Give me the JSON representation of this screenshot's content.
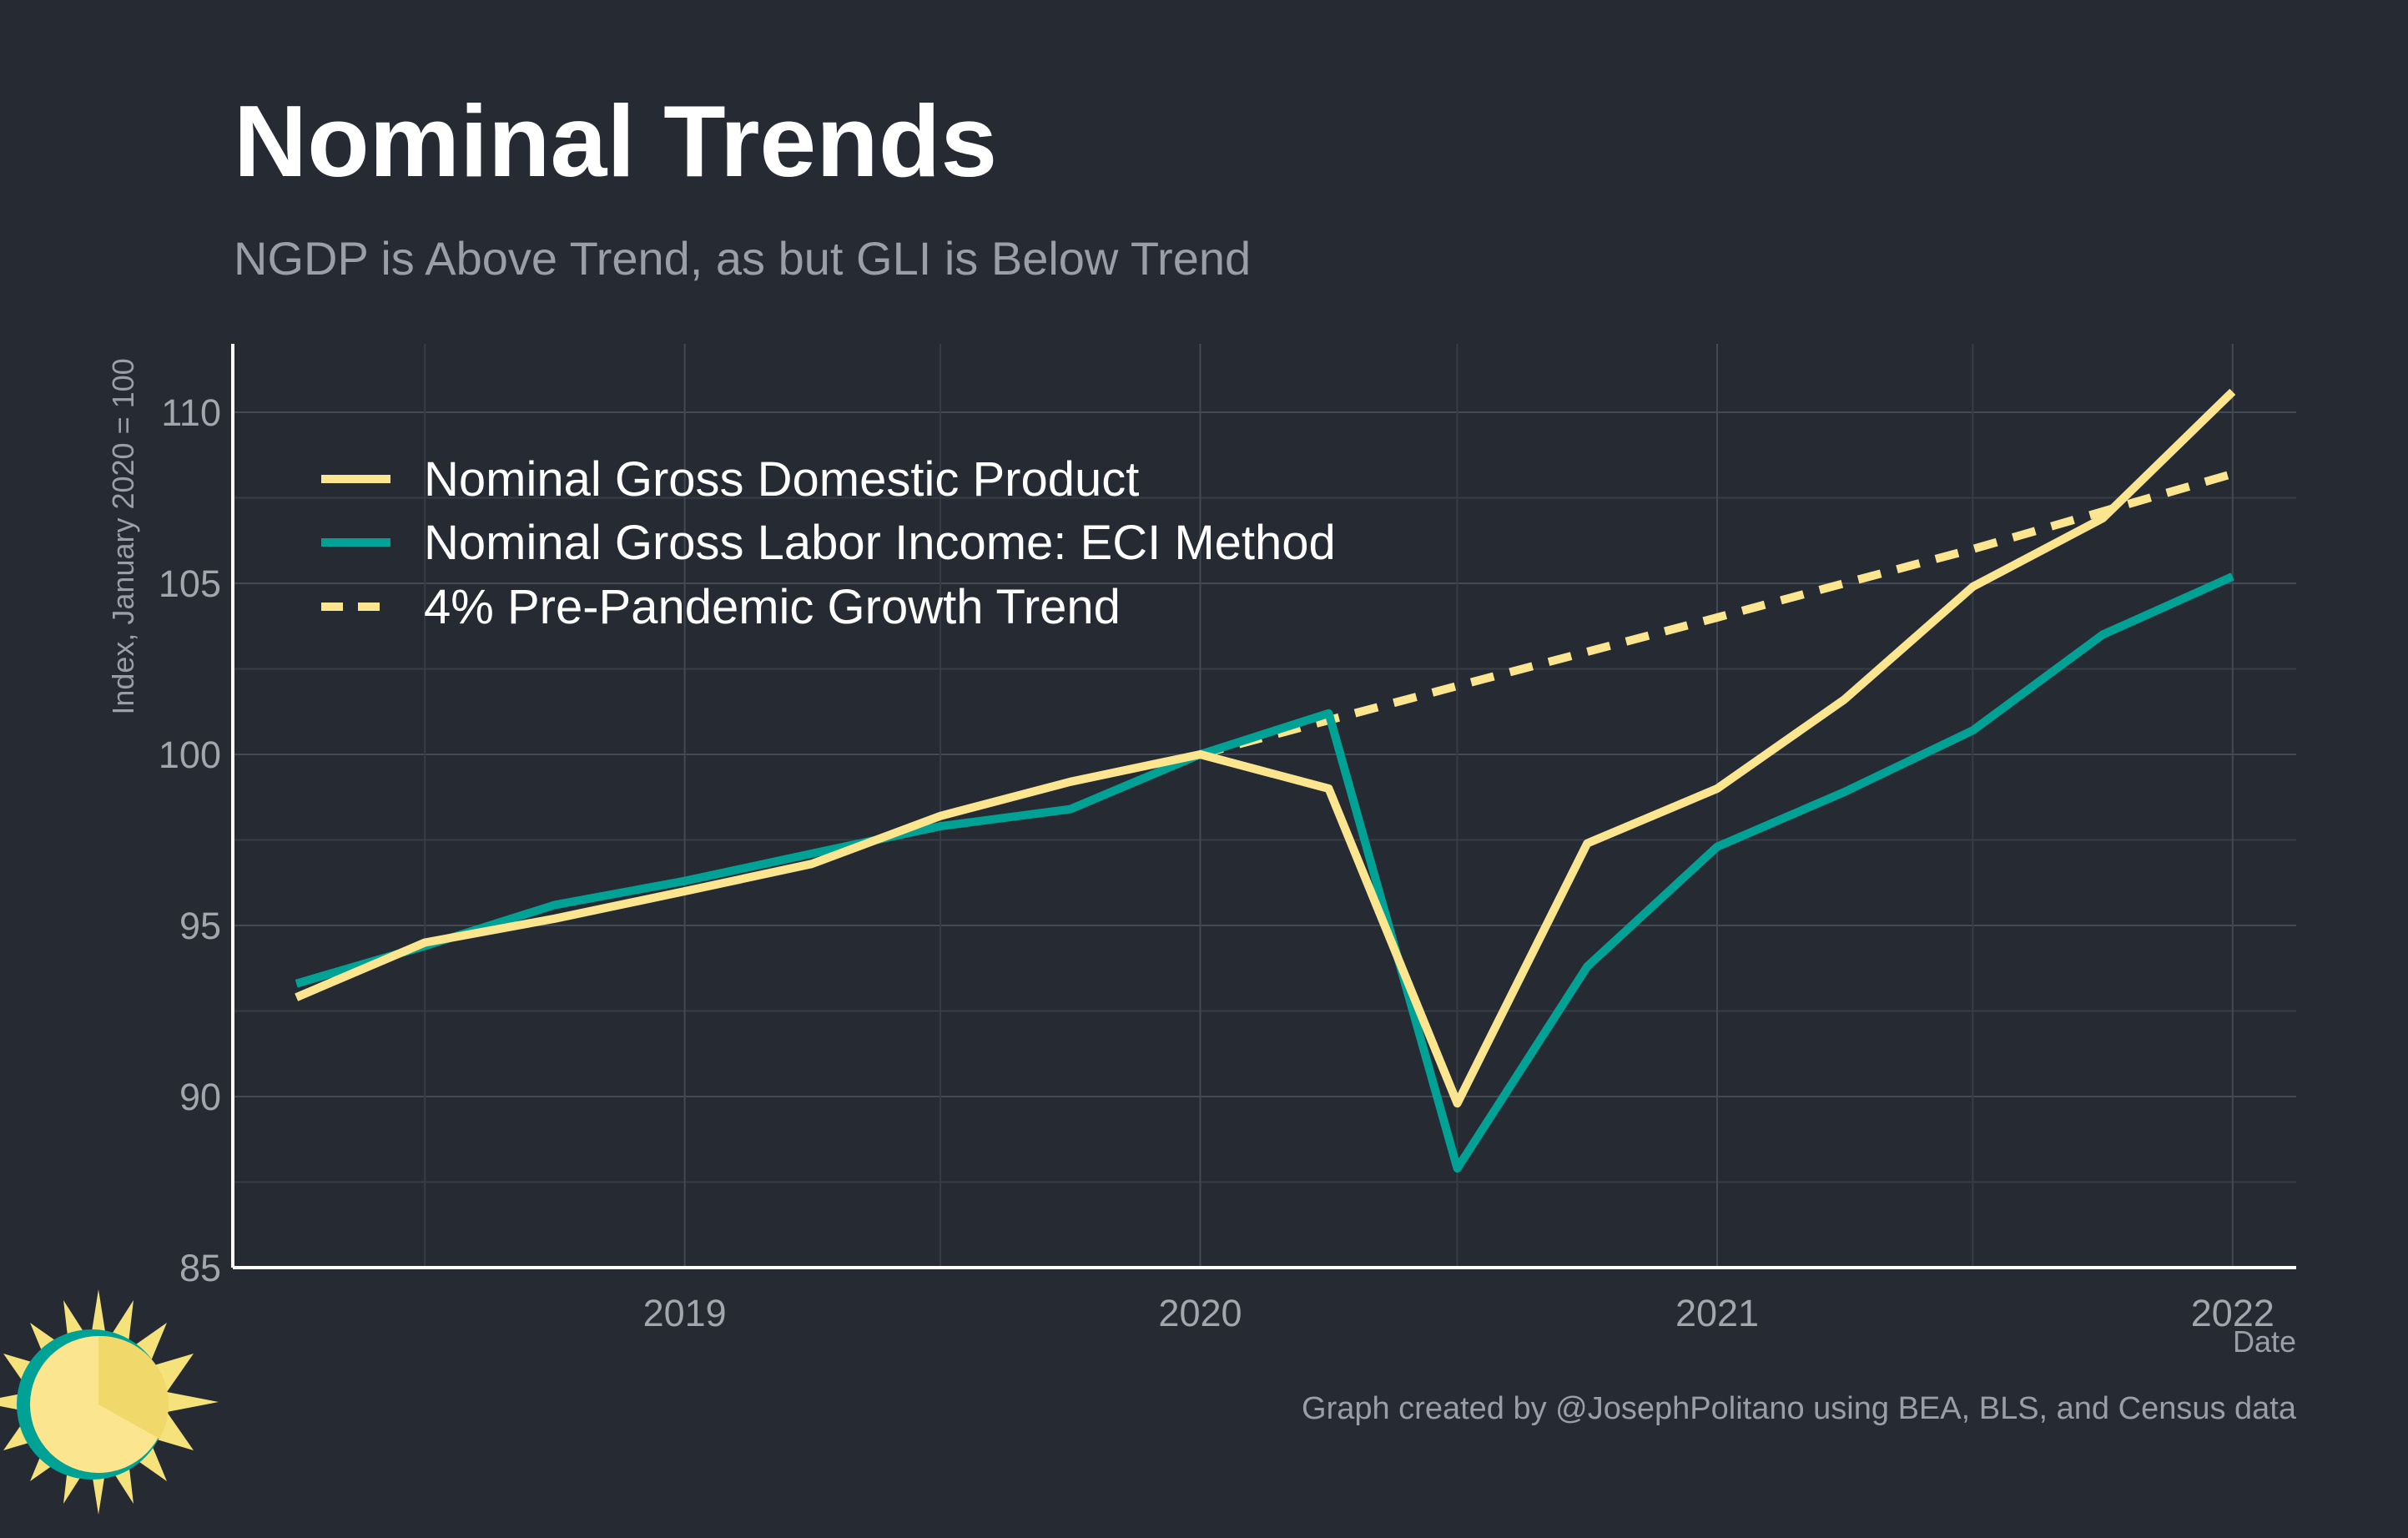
{
  "title": "Nominal Trends",
  "subtitle": "NGDP is Above Trend, as but GLI is Below Trend",
  "caption": "Graph created by @JosephPolitano using BEA, BLS, and Census data",
  "colors": {
    "background": "#252a33",
    "ngdp": "#fbe68f",
    "gli": "#00a295",
    "trend": "#fbe68f",
    "logo_sun": "#f6e27a",
    "logo_ring": "#00a295"
  },
  "logo": {
    "icon": "sun-logo-icon"
  },
  "chart_data": {
    "type": "line",
    "xlabel": "Date",
    "ylabel": "Index, January 2020 = 100",
    "xlim": [
      "2018-02-15",
      "2022-02-15"
    ],
    "ylim": [
      85,
      112
    ],
    "yticks": [
      85,
      90,
      95,
      100,
      105,
      110
    ],
    "xticks": [
      "2019-01-01",
      "2020-01-01",
      "2021-01-01",
      "2022-01-01"
    ],
    "xtick_labels": [
      "2019",
      "2020",
      "2021",
      "2022"
    ],
    "grid": true,
    "legend_position": "top-left",
    "series": [
      {
        "name": "Nominal Gross Domestic Product",
        "style": "solid",
        "color": "#fbe68f",
        "x": [
          "2018-04-01",
          "2018-07-01",
          "2018-10-01",
          "2019-01-01",
          "2019-04-01",
          "2019-07-01",
          "2019-10-01",
          "2020-01-01",
          "2020-04-01",
          "2020-07-01",
          "2020-10-01",
          "2021-01-01",
          "2021-04-01",
          "2021-07-01",
          "2021-10-01",
          "2022-01-01"
        ],
        "y": [
          92.9,
          94.5,
          95.2,
          96.0,
          96.8,
          98.2,
          99.2,
          100.0,
          99.0,
          89.8,
          97.4,
          99.0,
          101.6,
          104.9,
          106.9,
          110.6
        ]
      },
      {
        "name": "Nominal Gross Labor Income: ECI Method",
        "style": "solid",
        "color": "#00a295",
        "x": [
          "2018-04-01",
          "2018-07-01",
          "2018-10-01",
          "2019-01-01",
          "2019-04-01",
          "2019-07-01",
          "2019-10-01",
          "2020-01-01",
          "2020-04-01",
          "2020-07-01",
          "2020-10-01",
          "2021-01-01",
          "2021-04-01",
          "2021-07-01",
          "2021-10-01",
          "2022-01-01"
        ],
        "y": [
          93.3,
          94.4,
          95.6,
          96.3,
          97.1,
          97.9,
          98.4,
          100.0,
          101.2,
          87.9,
          93.8,
          97.3,
          98.9,
          100.7,
          103.5,
          105.2
        ]
      },
      {
        "name": "4% Pre-Pandemic Growth Trend",
        "style": "dashed",
        "color": "#fbe68f",
        "x": [
          "2020-01-01",
          "2020-04-01",
          "2020-07-01",
          "2020-10-01",
          "2021-01-01",
          "2021-04-01",
          "2021-07-01",
          "2021-10-01",
          "2022-01-01"
        ],
        "y": [
          100.0,
          101.0,
          102.0,
          103.0,
          104.0,
          105.0,
          106.0,
          107.1,
          108.2
        ]
      }
    ]
  }
}
